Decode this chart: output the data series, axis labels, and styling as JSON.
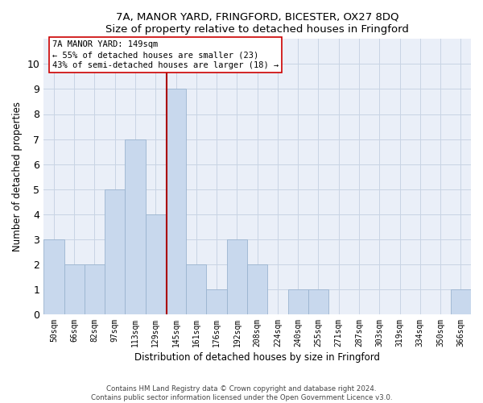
{
  "title1": "7A, MANOR YARD, FRINGFORD, BICESTER, OX27 8DQ",
  "title2": "Size of property relative to detached houses in Fringford",
  "xlabel": "Distribution of detached houses by size in Fringford",
  "ylabel": "Number of detached properties",
  "categories": [
    "50sqm",
    "66sqm",
    "82sqm",
    "97sqm",
    "113sqm",
    "129sqm",
    "145sqm",
    "161sqm",
    "176sqm",
    "192sqm",
    "208sqm",
    "224sqm",
    "240sqm",
    "255sqm",
    "271sqm",
    "287sqm",
    "303sqm",
    "319sqm",
    "334sqm",
    "350sqm",
    "366sqm"
  ],
  "values": [
    3,
    2,
    2,
    5,
    7,
    4,
    9,
    2,
    1,
    3,
    2,
    0,
    1,
    1,
    0,
    0,
    0,
    0,
    0,
    0,
    1
  ],
  "bar_color": "#c8d8ed",
  "bar_edge_color": "#9ab4d0",
  "grid_color": "#c8d4e4",
  "bg_color": "#eaeff8",
  "subject_bar_index": 6,
  "subject_line_color": "#aa0000",
  "annotation_line1": "7A MANOR YARD: 149sqm",
  "annotation_line2": "← 55% of detached houses are smaller (23)",
  "annotation_line3": "43% of semi-detached houses are larger (18) →",
  "annotation_box_facecolor": "#ffffff",
  "annotation_box_edgecolor": "#cc0000",
  "ylim_max": 11,
  "footer1": "Contains HM Land Registry data © Crown copyright and database right 2024.",
  "footer2": "Contains public sector information licensed under the Open Government Licence v3.0."
}
